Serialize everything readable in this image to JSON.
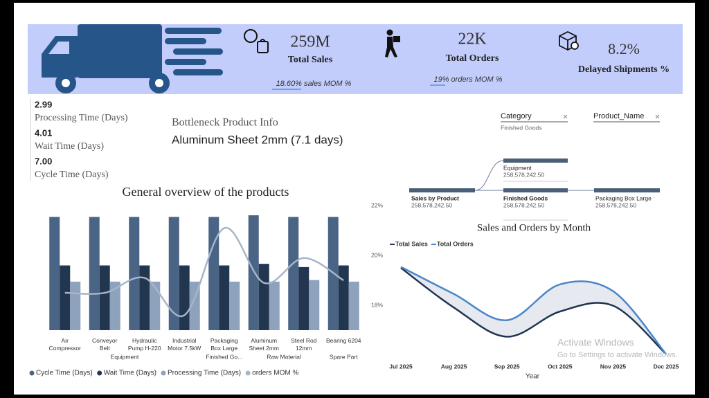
{
  "kpis": [
    {
      "value": "259M",
      "label": "Total Sales",
      "mom": "18.60% sales MOM %"
    },
    {
      "value": "22K",
      "label": "Total Orders",
      "mom": "19% orders MOM %"
    },
    {
      "value": "8.2%",
      "label": "Delayed Shipments %"
    }
  ],
  "metrics": [
    {
      "value": "2.99",
      "label": "Processing Time (Days)"
    },
    {
      "value": "4.01",
      "label": "Wait Time (Days)"
    },
    {
      "value": "7.00",
      "label": "Cycle Time (Days)"
    }
  ],
  "bottleneck": {
    "title": "Bottleneck Product Info",
    "product": "Aluminum Sheet 2mm (7.1 days)"
  },
  "slicers": [
    {
      "title": "Category",
      "selection": "Finished Goods"
    },
    {
      "title": "Product_Name"
    }
  ],
  "decomposition": {
    "nodes": [
      {
        "label": "Sales by Product",
        "value": "258,578,242.50"
      },
      {
        "label": "Equipment",
        "value": "258,578,242.50"
      },
      {
        "label": "Finished Goods",
        "value": "258,578,242.50"
      },
      {
        "label": "Packaging Box Large",
        "value": "258,578,242.50"
      }
    ]
  },
  "chart_data": [
    {
      "type": "combo",
      "title": "General overview of the products",
      "groups": [
        {
          "name": "Equipment",
          "categories": [
            "Air Compressor",
            "Conveyor Belt",
            "Hydraulic Pump H-220",
            "Industrial Motor 7.5kW"
          ]
        },
        {
          "name": "Finished Go...",
          "categories": [
            "Packaging Box Large"
          ]
        },
        {
          "name": "Raw Material",
          "categories": [
            "Aluminum Sheet 2mm",
            "Steel Rod 12mm"
          ]
        },
        {
          "name": "Spare Part",
          "categories": [
            "Bearing 6204"
          ]
        }
      ],
      "series": [
        {
          "name": "Cycle Time (Days)",
          "type": "bar",
          "color": "#4a6485",
          "values": [
            7.0,
            7.0,
            7.0,
            7.0,
            7.0,
            7.1,
            7.0,
            7.0
          ]
        },
        {
          "name": "Wait Time (Days)",
          "type": "bar",
          "color": "#233650",
          "values": [
            4.0,
            4.0,
            4.0,
            4.0,
            4.0,
            4.1,
            3.9,
            4.0
          ]
        },
        {
          "name": "Processing Time (Days)",
          "type": "bar",
          "color": "#8ea2bd",
          "values": [
            3.0,
            3.0,
            3.0,
            3.0,
            3.0,
            3.0,
            3.1,
            3.0
          ]
        },
        {
          "name": "orders MOM %",
          "type": "line",
          "axis": "y2",
          "color": "#a6b6c8",
          "values": [
            18.5,
            18.5,
            19.1,
            17.6,
            21.1,
            18.9,
            19.9,
            19.0
          ]
        }
      ],
      "ylim": [
        0,
        8
      ],
      "y2lim": [
        17,
        22.2
      ],
      "y2ticks": [
        {
          "value": 18,
          "label": "18%"
        },
        {
          "value": 20,
          "label": "20%"
        },
        {
          "value": 22,
          "label": "22%"
        }
      ]
    },
    {
      "type": "line",
      "title": "Sales and Orders by Month",
      "x_label": "Year",
      "categories": [
        "Jul 2025",
        "Aug 2025",
        "Sep 2025",
        "Oct 2025",
        "Nov 2025",
        "Dec 2025"
      ],
      "series": [
        {
          "name": "Total Sales",
          "color": "#1f3352",
          "values": [
            95,
            54,
            24,
            50,
            56,
            6
          ]
        },
        {
          "name": "Total Orders",
          "color": "#4a86c8",
          "values": [
            96,
            68,
            41,
            78,
            71,
            6
          ]
        }
      ],
      "ylim": [
        0,
        100
      ],
      "area_color": "#e6e9ef"
    }
  ],
  "watermark": {
    "title": "Activate Windows",
    "subtitle": "Go to Settings to activate Windows."
  }
}
